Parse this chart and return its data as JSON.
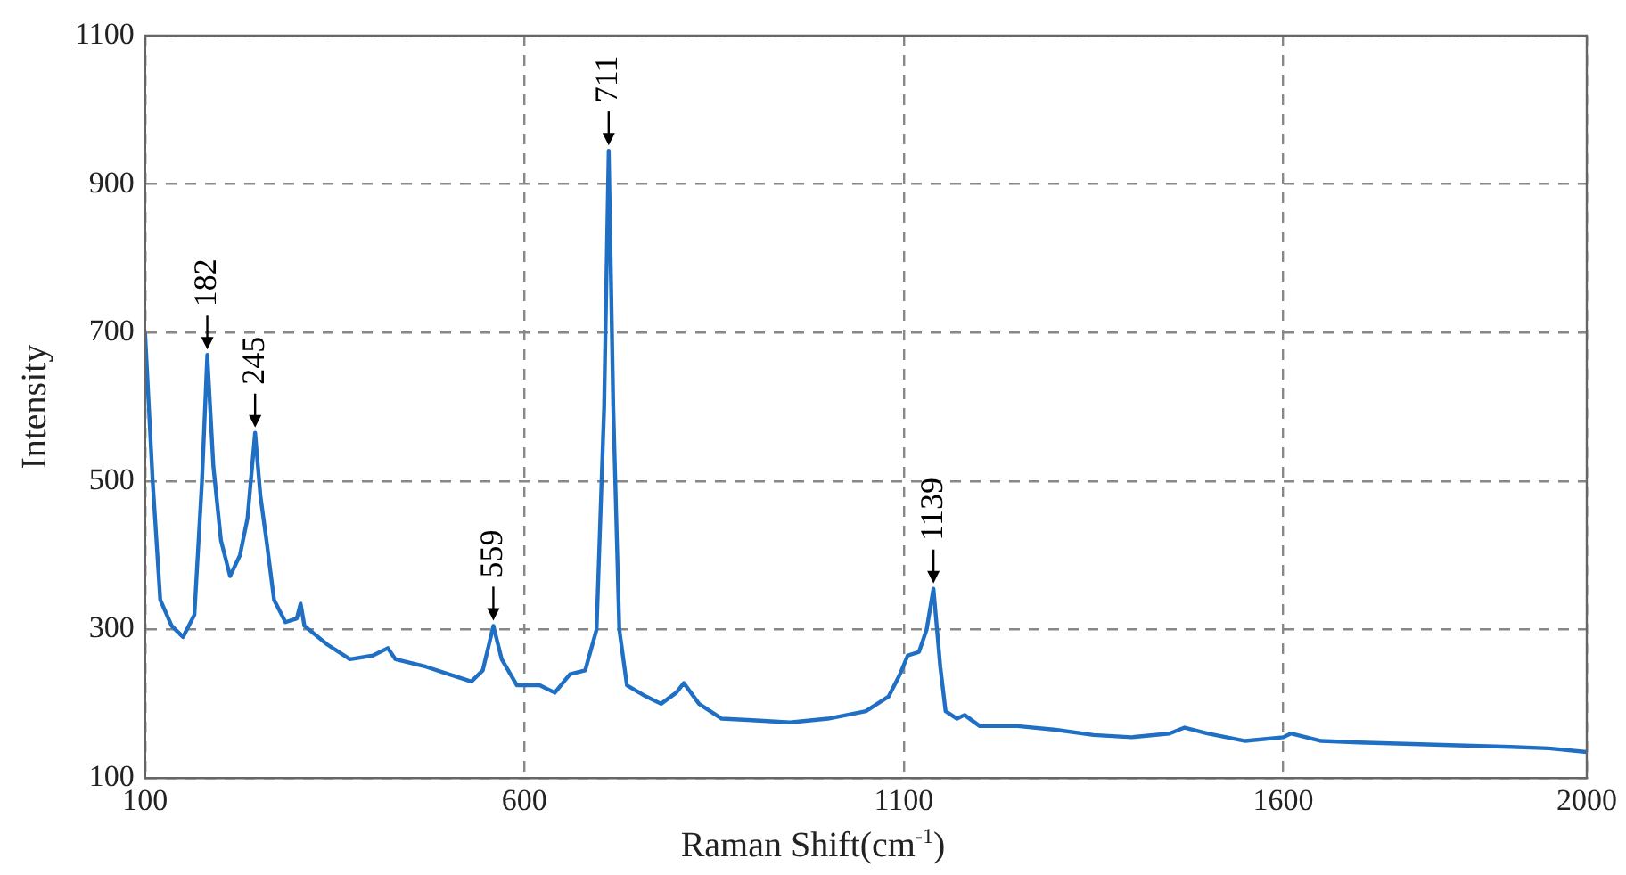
{
  "chart_data": {
    "type": "line",
    "xlabel": "Raman Shift(cm$^{-1}$)",
    "ylabel": "Intensity",
    "xlim": [
      100,
      2000
    ],
    "xticks": [
      100,
      600,
      1100,
      1600,
      2000
    ],
    "ylim": [
      100,
      1100
    ],
    "yticks": [
      100,
      300,
      500,
      700,
      900,
      1100
    ],
    "grid": true,
    "legend": false,
    "marker": "none",
    "line_style": "solid",
    "series": [
      {
        "color": "#1f6fc4",
        "x": [
          100,
          110,
          120,
          135,
          150,
          165,
          175,
          182,
          190,
          200,
          212,
          225,
          235,
          245,
          252,
          260,
          270,
          285,
          300,
          305,
          310,
          340,
          370,
          400,
          420,
          430,
          470,
          500,
          530,
          545,
          559,
          570,
          590,
          620,
          640,
          660,
          680,
          695,
          705,
          711,
          717,
          725,
          735,
          760,
          780,
          800,
          810,
          830,
          860,
          900,
          950,
          1000,
          1050,
          1080,
          1095,
          1105,
          1120,
          1130,
          1139,
          1148,
          1155,
          1170,
          1180,
          1200,
          1250,
          1300,
          1350,
          1400,
          1450,
          1470,
          1500,
          1550,
          1600,
          1610,
          1650,
          1700,
          1800,
          1900,
          1950,
          2000
        ],
        "values": [
          700,
          500,
          340,
          305,
          290,
          320,
          500,
          670,
          520,
          420,
          372,
          400,
          450,
          565,
          480,
          420,
          340,
          310,
          315,
          335,
          305,
          280,
          260,
          265,
          275,
          260,
          250,
          240,
          230,
          245,
          305,
          260,
          225,
          225,
          215,
          240,
          245,
          300,
          600,
          945,
          600,
          300,
          225,
          210,
          200,
          215,
          228,
          200,
          180,
          178,
          175,
          180,
          190,
          210,
          240,
          265,
          270,
          300,
          355,
          250,
          190,
          180,
          185,
          170,
          170,
          165,
          158,
          155,
          160,
          168,
          160,
          150,
          155,
          160,
          150,
          148,
          145,
          142,
          140,
          135
        ]
      }
    ],
    "annotations": [
      {
        "text": "182",
        "x": 182,
        "y": 670
      },
      {
        "text": "245",
        "x": 245,
        "y": 565
      },
      {
        "text": "559",
        "x": 559,
        "y": 305
      },
      {
        "text": "711",
        "x": 711,
        "y": 945
      },
      {
        "text": "1139",
        "x": 1139,
        "y": 355
      }
    ]
  }
}
